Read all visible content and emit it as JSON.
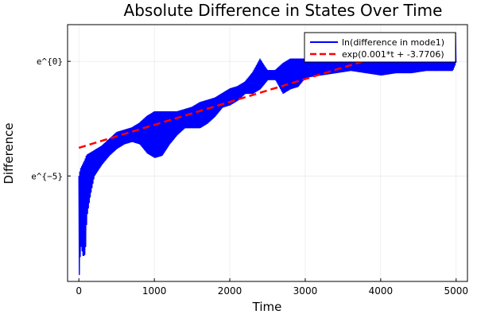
{
  "chart_data": {
    "type": "line",
    "title": "Absolute Difference in States Over Time",
    "xlabel": "Time",
    "ylabel": "Difference",
    "xlim": [
      -150,
      5150
    ],
    "ylim": [
      -9.6,
      1.6
    ],
    "xticks": [
      0,
      1000,
      2000,
      3000,
      4000,
      5000
    ],
    "xtick_labels": [
      "0",
      "1000",
      "2000",
      "3000",
      "4000",
      "5000"
    ],
    "yticks": [
      0,
      -5
    ],
    "ytick_labels": [
      "e^{0}",
      "e^{−5}"
    ],
    "grid": true,
    "legend_position": "top-right",
    "series": [
      {
        "name": "ln(difference in mode1)",
        "color": "#0000ff",
        "style": "solid",
        "envelope": {
          "t": [
            0,
            20,
            50,
            80,
            100,
            150,
            200,
            300,
            400,
            500,
            600,
            700,
            800,
            900,
            1000,
            1100,
            1200,
            1300,
            1400,
            1500,
            1600,
            1700,
            1800,
            1900,
            2000,
            2100,
            2200,
            2300,
            2400,
            2500,
            2600,
            2700,
            2800,
            2900,
            3000,
            3200,
            3400,
            3600,
            3800,
            4000,
            4200,
            4400,
            4600,
            4800,
            4950,
            5000
          ],
          "upper": [
            -5.0,
            -4.7,
            -4.5,
            -4.3,
            -4.1,
            -4.0,
            -3.9,
            -3.7,
            -3.4,
            -3.1,
            -3.0,
            -2.9,
            -2.7,
            -2.4,
            -2.2,
            -2.2,
            -2.2,
            -2.2,
            -2.1,
            -2.0,
            -1.8,
            -1.7,
            -1.6,
            -1.4,
            -1.2,
            -1.1,
            -0.9,
            -0.5,
            0.1,
            -0.4,
            -0.4,
            -0.1,
            0.1,
            0.1,
            0.1,
            0.1,
            0.1,
            0.2,
            0.2,
            0.3,
            0.3,
            0.3,
            0.3,
            0.4,
            0.3,
            1.3
          ],
          "lower": [
            -9.3,
            -8.0,
            -8.5,
            -8.4,
            -6.8,
            -5.8,
            -5.0,
            -4.5,
            -4.1,
            -3.8,
            -3.6,
            -3.5,
            -3.6,
            -4.0,
            -4.2,
            -4.1,
            -3.6,
            -3.2,
            -2.9,
            -2.9,
            -2.9,
            -2.7,
            -2.4,
            -2.0,
            -1.9,
            -1.7,
            -1.4,
            -1.4,
            -1.2,
            -0.8,
            -0.8,
            -1.4,
            -1.2,
            -1.1,
            -0.7,
            -0.6,
            -0.5,
            -0.4,
            -0.5,
            -0.6,
            -0.5,
            -0.5,
            -0.4,
            -0.4,
            -0.4,
            0.0
          ]
        }
      },
      {
        "name": "exp(0.001*t + -3.7706)",
        "color": "#ff0000",
        "style": "dashed",
        "x": [
          0,
          5000
        ],
        "y": [
          -3.7706,
          1.2294
        ]
      }
    ]
  }
}
